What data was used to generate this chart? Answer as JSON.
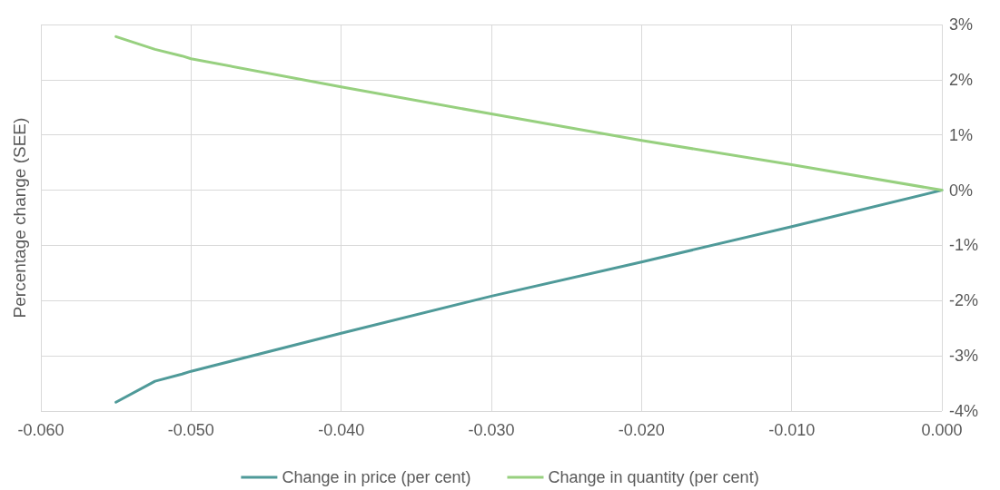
{
  "chart_data": {
    "type": "line",
    "ylabel": "Percentage change (SEE)",
    "xlim": [
      -0.06,
      0
    ],
    "xticks": [
      {
        "value": -0.06,
        "label": "-0.060"
      },
      {
        "value": -0.05,
        "label": "-0.050"
      },
      {
        "value": -0.04,
        "label": "-0.040"
      },
      {
        "value": -0.03,
        "label": "-0.030"
      },
      {
        "value": -0.02,
        "label": "-0.020"
      },
      {
        "value": -0.01,
        "label": "-0.010"
      },
      {
        "value": 0,
        "label": "0.000"
      }
    ],
    "ylim": [
      -4,
      3
    ],
    "yticks": [
      {
        "value": -4,
        "label": "-4%"
      },
      {
        "value": -3,
        "label": "-3%"
      },
      {
        "value": -2,
        "label": "-2%"
      },
      {
        "value": -1,
        "label": "-1%"
      },
      {
        "value": 0,
        "label": "0%"
      },
      {
        "value": 1,
        "label": "1%"
      },
      {
        "value": 2,
        "label": "2%"
      },
      {
        "value": 3,
        "label": "3%"
      }
    ],
    "x": [
      -0.055,
      -0.0524,
      -0.0506,
      -0.05,
      -0.04,
      -0.03,
      -0.02,
      -0.01,
      0
    ],
    "series": [
      {
        "name": "Change in price (per cent)",
        "color": "#4f9a99",
        "values": [
          -3.84,
          -3.46,
          -3.33,
          -3.28,
          -2.59,
          -1.92,
          -1.3,
          -0.66,
          0
        ]
      },
      {
        "name": "Change in quantity (per cent)",
        "color": "#97d07f",
        "values": [
          2.78,
          2.55,
          2.43,
          2.38,
          1.87,
          1.38,
          0.9,
          0.46,
          0
        ]
      }
    ],
    "grid": true,
    "legend": "bottom",
    "marker": "none",
    "line_style": "solid"
  }
}
